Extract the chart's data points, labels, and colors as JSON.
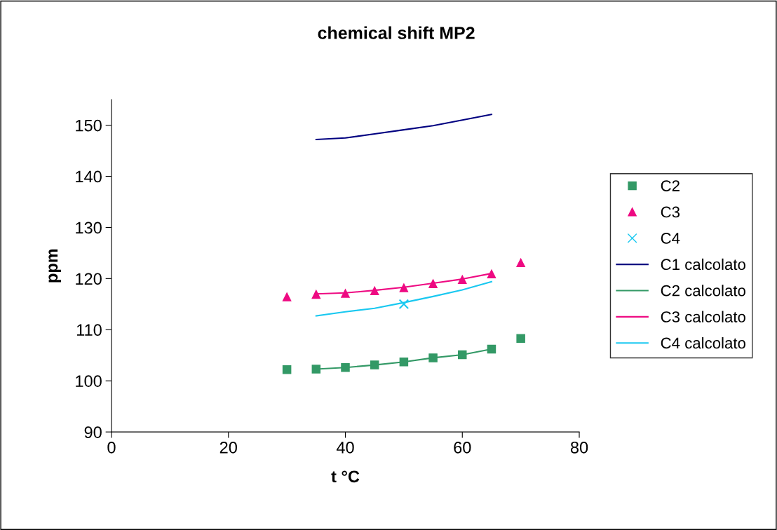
{
  "chart_data": {
    "type": "scatter",
    "title": "chemical shift MP2",
    "xlabel": "t °C",
    "ylabel": "ppm",
    "xlim": [
      0,
      80
    ],
    "xticks": [
      0,
      20,
      40,
      60,
      80
    ],
    "ylim": [
      90,
      155
    ],
    "yticks": [
      90,
      100,
      110,
      120,
      130,
      140,
      150
    ],
    "grid": false,
    "legend": "right",
    "series": [
      {
        "name": "C2",
        "marker": "square",
        "color": "#339966",
        "x": [
          30,
          35,
          40,
          45,
          50,
          55,
          60,
          65,
          70
        ],
        "values": [
          102.2,
          102.3,
          102.6,
          103.1,
          103.7,
          104.5,
          105.1,
          106.2,
          108.3
        ]
      },
      {
        "name": "C3",
        "marker": "triangle",
        "color": "#ee0a82",
        "x": [
          30,
          35,
          40,
          45,
          50,
          55,
          60,
          65,
          70
        ],
        "values": [
          116.4,
          116.9,
          117.1,
          117.6,
          118.2,
          119.0,
          119.8,
          120.9,
          123.1
        ]
      },
      {
        "name": "C4",
        "marker": "cross",
        "color": "#19c8f0",
        "x": [
          50
        ],
        "values": [
          115.0
        ]
      },
      {
        "name": "C1 calcolato",
        "type": "line",
        "color": "#000080",
        "x": [
          35,
          40,
          45,
          50,
          55,
          60,
          65
        ],
        "values": [
          147.2,
          147.5,
          148.3,
          149.1,
          149.9,
          151.0,
          152.1
        ]
      },
      {
        "name": "C2 calcolato",
        "type": "line",
        "color": "#339966",
        "x": [
          35,
          40,
          45,
          50,
          55,
          60,
          65
        ],
        "values": [
          102.3,
          102.6,
          103.1,
          103.7,
          104.5,
          105.1,
          106.2
        ]
      },
      {
        "name": "C3 calcolato",
        "type": "line",
        "color": "#ee0a82",
        "x": [
          35,
          40,
          45,
          50,
          55,
          60,
          65
        ],
        "values": [
          117.0,
          117.2,
          117.7,
          118.3,
          119.1,
          119.9,
          121.0
        ]
      },
      {
        "name": "C4 calcolato",
        "type": "line",
        "color": "#19c8f0",
        "x": [
          35,
          40,
          45,
          50,
          55,
          60,
          65
        ],
        "values": [
          112.7,
          113.5,
          114.2,
          115.3,
          116.5,
          117.8,
          119.4
        ]
      }
    ]
  }
}
